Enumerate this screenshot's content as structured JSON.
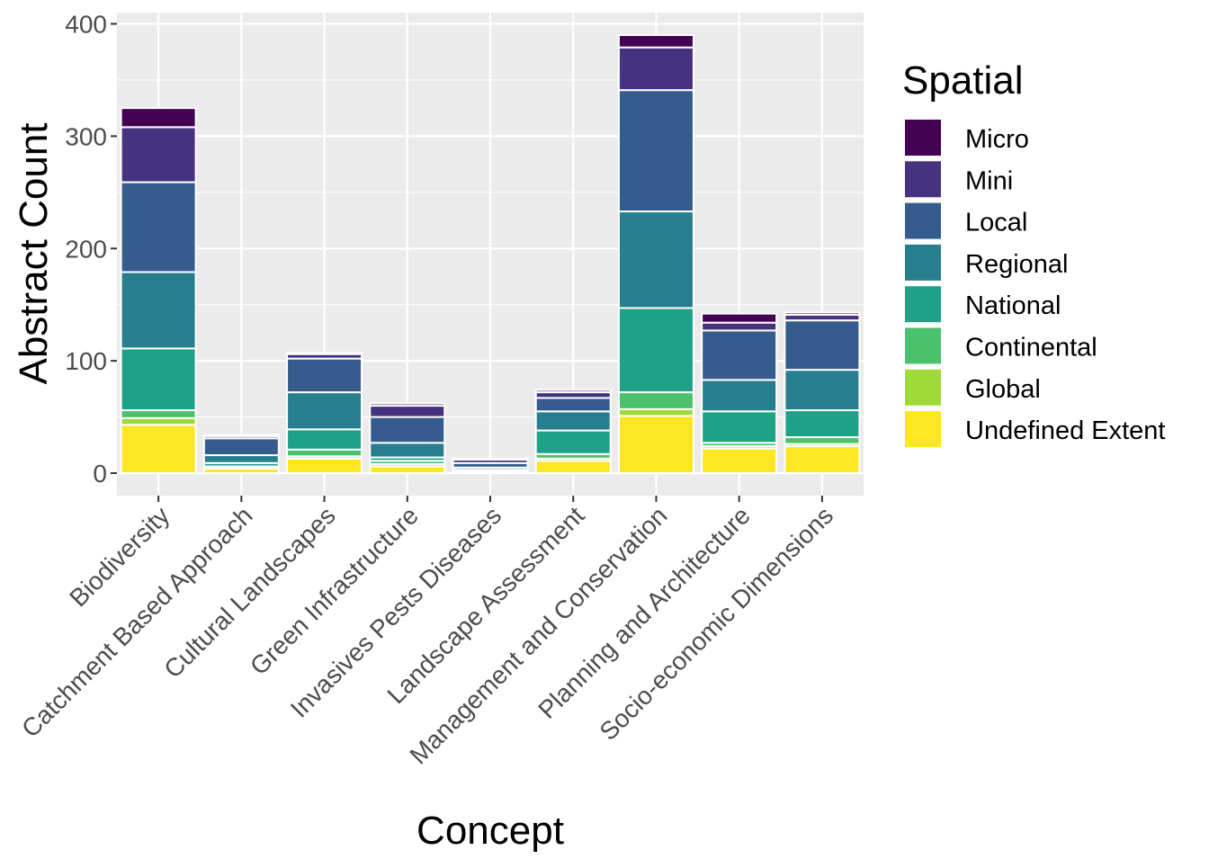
{
  "chart_data": {
    "type": "bar",
    "stacked": true,
    "title": "",
    "xlabel": "Concept",
    "ylabel": "Abstract Count",
    "ylim": [
      -20,
      410
    ],
    "yticks": [
      0,
      100,
      200,
      300,
      400
    ],
    "grid": true,
    "legend": {
      "title": "Spatial",
      "position": "right"
    },
    "categories": [
      "Biodiversity",
      "Catchment Based Approach",
      "Cultural Landscapes",
      "Green Infrastructure",
      "Invasives Pests Diseases",
      "Landscape Assessment",
      "Management and Conservation",
      "Planning and Architecture",
      "Socio-economic Dimensions"
    ],
    "series": [
      {
        "name": "Undefined Extent",
        "color": "#FDE725",
        "values": [
          43,
          4,
          13,
          6,
          1,
          11,
          51,
          22,
          24
        ]
      },
      {
        "name": "Global",
        "color": "#A0DA39",
        "values": [
          6,
          1,
          2,
          2,
          0,
          2,
          6,
          2,
          2
        ]
      },
      {
        "name": "Continental",
        "color": "#4AC16D",
        "values": [
          7,
          1,
          6,
          3,
          1,
          4,
          15,
          3,
          6
        ]
      },
      {
        "name": "National",
        "color": "#1FA187",
        "values": [
          55,
          3,
          18,
          3,
          1,
          21,
          75,
          28,
          24
        ]
      },
      {
        "name": "Regional",
        "color": "#277F8E",
        "values": [
          68,
          7,
          33,
          13,
          2,
          17,
          86,
          28,
          36
        ]
      },
      {
        "name": "Local",
        "color": "#365C8D",
        "values": [
          80,
          15,
          30,
          23,
          4,
          12,
          108,
          44,
          44
        ]
      },
      {
        "name": "Mini",
        "color": "#46327E",
        "values": [
          49,
          2,
          4,
          10,
          3,
          5,
          38,
          7,
          5
        ]
      },
      {
        "name": "Micro",
        "color": "#440154",
        "values": [
          17,
          1,
          1,
          2,
          1,
          2,
          11,
          8,
          2
        ]
      }
    ],
    "legend_order": [
      "Micro",
      "Mini",
      "Local",
      "Regional",
      "National",
      "Continental",
      "Global",
      "Undefined Extent"
    ]
  }
}
